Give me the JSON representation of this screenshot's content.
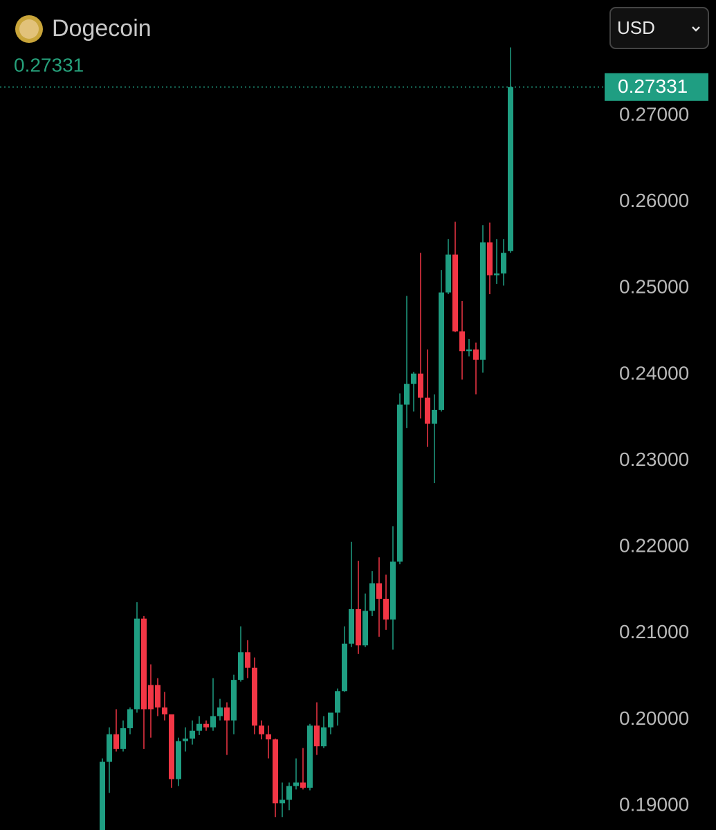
{
  "chart_data": {
    "type": "candlestick",
    "title": "Dogecoin",
    "currency": "USD",
    "up_color": "#1f9e82",
    "down_color": "#f23645",
    "ylim": [
      0.1872,
      0.2834
    ],
    "yticks": [
      {
        "value": 0.19,
        "label": "0.19000"
      },
      {
        "value": 0.2,
        "label": "0.20000"
      },
      {
        "value": 0.21,
        "label": "0.21000"
      },
      {
        "value": 0.22,
        "label": "0.22000"
      },
      {
        "value": 0.23,
        "label": "0.23000"
      },
      {
        "value": 0.24,
        "label": "0.24000"
      },
      {
        "value": 0.25,
        "label": "0.25000"
      },
      {
        "value": 0.26,
        "label": "0.26000"
      },
      {
        "value": 0.27,
        "label": "0.27000"
      }
    ],
    "open": [
      0.1872,
      0.1951,
      0.1983,
      0.1966,
      0.199,
      0.2012,
      0.2117,
      0.204,
      0.204,
      0.2014,
      0.2006,
      0.1931,
      0.1975,
      0.1978,
      0.1987,
      0.1995,
      0.1991,
      0.2004,
      0.2014,
      0.1999,
      0.2046,
      0.2078,
      0.206,
      0.1993,
      0.1983,
      0.1977,
      0.1903,
      0.1907,
      0.1923,
      0.1927,
      0.1921,
      0.1993,
      0.1969,
      0.1991,
      0.2008,
      0.2033,
      0.2088,
      0.2128,
      0.2086,
      0.2126,
      0.2158,
      0.214,
      0.2116,
      0.2183,
      0.2365,
      0.2389,
      0.2401,
      0.2373,
      0.2343,
      0.2359,
      0.2495,
      0.2539,
      0.245,
      0.2427,
      0.2429,
      0.2417,
      0.2553,
      0.2515,
      0.2517,
      0.2543
    ],
    "close": [
      0.1951,
      0.1983,
      0.1966,
      0.199,
      0.2012,
      0.2117,
      0.2012,
      0.2012,
      0.2014,
      0.2006,
      0.1931,
      0.1975,
      0.1978,
      0.1987,
      0.1995,
      0.1991,
      0.2004,
      0.2014,
      0.1999,
      0.2046,
      0.2078,
      0.206,
      0.1993,
      0.1983,
      0.1977,
      0.1903,
      0.1907,
      0.1923,
      0.1927,
      0.1921,
      0.1993,
      0.1969,
      0.1991,
      0.2008,
      0.2033,
      0.2088,
      0.2128,
      0.2086,
      0.2126,
      0.2158,
      0.214,
      0.2116,
      0.2183,
      0.2365,
      0.2389,
      0.2401,
      0.2373,
      0.2343,
      0.2359,
      0.2495,
      0.2539,
      0.245,
      0.2427,
      0.2429,
      0.2417,
      0.2553,
      0.2515,
      0.2517,
      0.2541,
      0.27331
    ],
    "high": [
      0.1955,
      0.1991,
      0.2012,
      0.1999,
      0.2014,
      0.2136,
      0.212,
      0.2064,
      0.2048,
      0.2032,
      0.2006,
      0.1979,
      0.1991,
      0.1999,
      0.2004,
      0.1999,
      0.2048,
      0.2024,
      0.202,
      0.2052,
      0.2108,
      0.2092,
      0.2072,
      0.1999,
      0.1993,
      0.1978,
      0.1927,
      0.1927,
      0.1955,
      0.1967,
      0.1995,
      0.202,
      0.2004,
      0.2008,
      0.2036,
      0.2108,
      0.2206,
      0.2184,
      0.2146,
      0.2172,
      0.2188,
      0.2168,
      0.2224,
      0.2378,
      0.2491,
      0.2403,
      0.2541,
      0.2429,
      0.2377,
      0.2521,
      0.2557,
      0.2577,
      0.2485,
      0.2441,
      0.2437,
      0.2573,
      0.2576,
      0.2557,
      0.2557,
      0.2779
    ],
    "low": [
      0.1872,
      0.1915,
      0.1963,
      0.1963,
      0.1983,
      0.2008,
      0.1966,
      0.1979,
      0.2004,
      0.1999,
      0.1921,
      0.1923,
      0.1963,
      0.1971,
      0.1982,
      0.1987,
      0.1987,
      0.1999,
      0.1959,
      0.1983,
      0.2044,
      0.2048,
      0.1983,
      0.1977,
      0.1955,
      0.1887,
      0.1887,
      0.1895,
      0.1919,
      0.1919,
      0.1918,
      0.1959,
      0.1967,
      0.1983,
      0.1993,
      0.2032,
      0.2084,
      0.2076,
      0.2084,
      0.212,
      0.2096,
      0.2104,
      0.2081,
      0.218,
      0.2338,
      0.2357,
      0.2349,
      0.2316,
      0.2274,
      0.2357,
      0.2493,
      0.2449,
      0.2394,
      0.2421,
      0.2377,
      0.2402,
      0.2493,
      0.2505,
      0.2503,
      0.2541
    ]
  }
}
